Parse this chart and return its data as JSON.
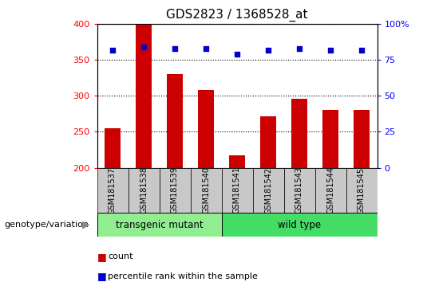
{
  "title": "GDS2823 / 1368528_at",
  "samples": [
    "GSM181537",
    "GSM181538",
    "GSM181539",
    "GSM181540",
    "GSM181541",
    "GSM181542",
    "GSM181543",
    "GSM181544",
    "GSM181545"
  ],
  "counts": [
    255,
    400,
    330,
    308,
    217,
    272,
    296,
    281,
    280
  ],
  "percentile_ranks": [
    82,
    84,
    83,
    83,
    79,
    82,
    83,
    82,
    82
  ],
  "ylim_left": [
    200,
    400
  ],
  "ylim_right": [
    0,
    100
  ],
  "yticks_left": [
    200,
    250,
    300,
    350,
    400
  ],
  "yticks_right": [
    0,
    25,
    50,
    75,
    100
  ],
  "ytick_labels_right": [
    "0",
    "25",
    "50",
    "75",
    "100%"
  ],
  "bar_color": "#cc0000",
  "scatter_color": "#0000cc",
  "bar_width": 0.5,
  "group_labels": [
    "transgenic mutant",
    "wild type"
  ],
  "group_ranges": [
    [
      0,
      3
    ],
    [
      4,
      8
    ]
  ],
  "group_color_light": "#90ee90",
  "group_color_dark": "#44dd66",
  "genotype_label": "genotype/variation",
  "legend_items": [
    "count",
    "percentile rank within the sample"
  ],
  "legend_colors": [
    "#cc0000",
    "#0000cc"
  ],
  "sample_label_bg": "#c8c8c8",
  "background_color": "#ffffff",
  "title_fontsize": 11,
  "tick_fontsize": 8,
  "label_fontsize": 7,
  "legend_fontsize": 8
}
